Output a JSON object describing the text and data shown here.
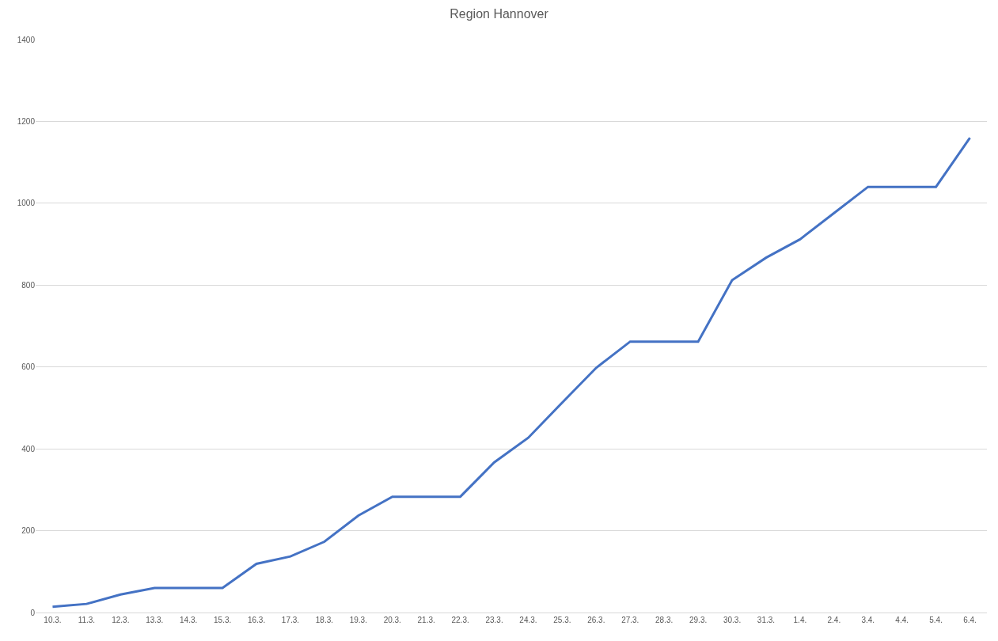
{
  "chart_data": {
    "type": "line",
    "title": "Region Hannover",
    "categories": [
      "10.3.",
      "11.3.",
      "12.3.",
      "13.3.",
      "14.3.",
      "15.3.",
      "16.3.",
      "17.3.",
      "18.3.",
      "19.3.",
      "20.3.",
      "21.3.",
      "22.3.",
      "23.3.",
      "24.3.",
      "25.3.",
      "26.3.",
      "27.3.",
      "28.3.",
      "29.3.",
      "30.3.",
      "31.3.",
      "1.4.",
      "2.4.",
      "3.4.",
      "4.4.",
      "5.4.",
      "6.4."
    ],
    "series": [
      {
        "color": "#4472c4",
        "values": [
          14,
          21,
          44,
          60,
          60,
          60,
          119,
          137,
          173,
          237,
          283,
          283,
          283,
          367,
          427,
          513,
          598,
          662,
          662,
          662,
          812,
          867,
          912,
          976,
          1040,
          1040,
          1040,
          1160
        ]
      }
    ],
    "ylim": [
      0,
      1400
    ],
    "yticks": [
      0,
      200,
      400,
      600,
      800,
      1000,
      1200,
      1400
    ],
    "grid": "y",
    "marker": "none",
    "line_style": "solid"
  }
}
